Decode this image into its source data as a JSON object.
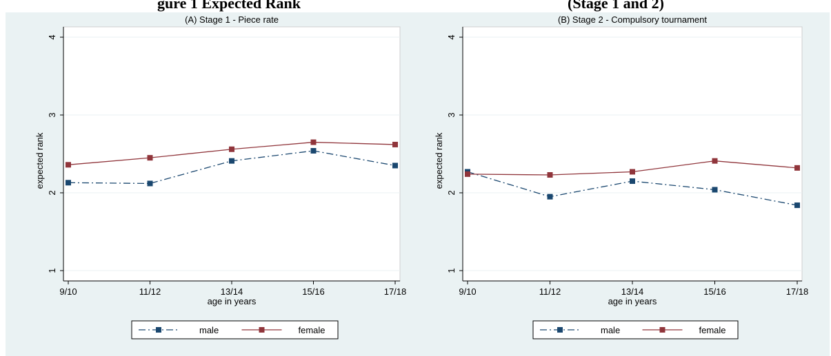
{
  "caption": {
    "left": "gure 1 Expected Rank",
    "right": "(Stage 1 and 2)"
  },
  "chart_data": [
    {
      "type": "line",
      "title": "(A) Stage 1 - Piece rate",
      "xlabel": "age in years",
      "ylabel": "expected rank",
      "categories": [
        "9/10",
        "11/12",
        "13/14",
        "15/16",
        "17/18"
      ],
      "yticks": [
        1,
        2,
        3,
        4
      ],
      "ylim": [
        1,
        4
      ],
      "grid": true,
      "legend": "bottom",
      "series": [
        {
          "name": "male",
          "color": "#1a476f",
          "style": "dash-dot",
          "values": [
            2.13,
            2.12,
            2.41,
            2.54,
            2.35
          ]
        },
        {
          "name": "female",
          "color": "#90353b",
          "style": "solid",
          "values": [
            2.36,
            2.45,
            2.56,
            2.65,
            2.62
          ]
        }
      ]
    },
    {
      "type": "line",
      "title": "(B) Stage 2 - Compulsory tournament",
      "xlabel": "age in years",
      "ylabel": "expected rank",
      "categories": [
        "9/10",
        "11/12",
        "13/14",
        "15/16",
        "17/18"
      ],
      "yticks": [
        1,
        2,
        3,
        4
      ],
      "ylim": [
        1,
        4
      ],
      "grid": true,
      "legend": "bottom",
      "series": [
        {
          "name": "male",
          "color": "#1a476f",
          "style": "dash-dot",
          "values": [
            2.27,
            1.95,
            2.15,
            2.04,
            1.84
          ]
        },
        {
          "name": "female",
          "color": "#90353b",
          "style": "solid",
          "values": [
            2.24,
            2.23,
            2.27,
            2.41,
            2.32
          ]
        }
      ]
    }
  ]
}
